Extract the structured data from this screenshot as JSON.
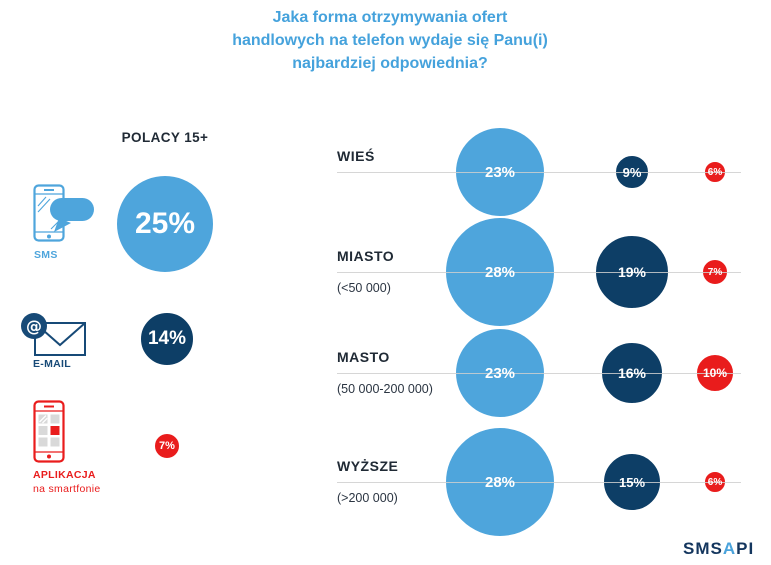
{
  "title": {
    "lines": [
      "Jaka forma otrzymywania ofert",
      "handlowych na telefon wydaje się Panu(i)",
      "najbardziej odpowiednia?"
    ]
  },
  "left_panel": {
    "header": "POLACY 15+",
    "items": [
      {
        "id": "sms",
        "label": "SMS"
      },
      {
        "id": "email",
        "label": "E-MAIL"
      },
      {
        "id": "app",
        "label": "APLIKACJA",
        "sublabel": "na smartfonie"
      }
    ]
  },
  "chart_data": {
    "type": "bubble",
    "title": "Jaka forma otrzymywania ofert handlowych na telefon wydaje się Panu(i) najbardziej odpowiednia?",
    "unit": "%",
    "series_names": [
      "SMS",
      "E-MAIL",
      "APLIKACJA na smartfonie"
    ],
    "overall": {
      "group": "POLACY 15+",
      "sms": 25,
      "email": 14,
      "app": 7
    },
    "rows": [
      {
        "label": "WIEŚ",
        "sublabel": "",
        "sms": 23,
        "email": 9,
        "app": 6
      },
      {
        "label": "MIASTO",
        "sublabel": "(<50 000)",
        "sms": 28,
        "email": 19,
        "app": 7
      },
      {
        "label": "MASTO",
        "sublabel": "(50 000-200 000)",
        "sms": 23,
        "email": 16,
        "app": 10
      },
      {
        "label": "WYŻSZE",
        "sublabel": "(>200 000)",
        "sms": 28,
        "email": 15,
        "app": 6
      }
    ],
    "colors": {
      "sms": "#4ea5dc",
      "email": "#0d3e66",
      "app": "#e91c1c"
    },
    "layout": {
      "bubble_diameter_per_percent": 4,
      "legend_position": "left",
      "grid": "horizontal-lines"
    }
  },
  "logo": {
    "sms": "SMS",
    "a": "A",
    "pi": "PI"
  }
}
